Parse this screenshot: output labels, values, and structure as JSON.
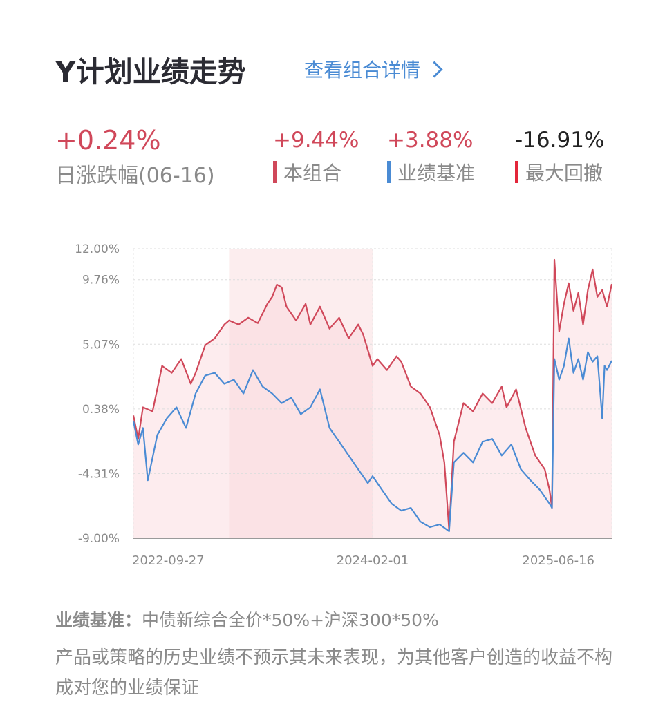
{
  "header": {
    "title": "Y计划业绩走势",
    "detail_link": "查看组合详情"
  },
  "stats": {
    "daily": {
      "value": "+0.24%",
      "label": "日涨跌幅(06-16)"
    },
    "portfolio": {
      "value": "+9.44%",
      "label": "本组合",
      "color": "#d0485a"
    },
    "benchmark": {
      "value": "+3.88%",
      "label": "业绩基准",
      "color": "#4a8bd4"
    },
    "drawdown": {
      "value": "-16.91%",
      "label": "最大回撤",
      "color": "#e3263a"
    }
  },
  "chart_data": {
    "type": "line",
    "title": "",
    "ylim": [
      -9.0,
      12.0
    ],
    "yticks": [
      "12.00%",
      "9.76%",
      "5.07%",
      "0.38%",
      "-4.31%",
      "-9.00%"
    ],
    "ytick_values": [
      12.0,
      9.76,
      5.07,
      0.38,
      -4.31,
      -9.0
    ],
    "xticks": [
      {
        "label": "2022-09-27",
        "t": 0.0
      },
      {
        "label": "2024-02-01",
        "t": 0.5
      },
      {
        "label": "2025-06-16",
        "t": 1.0
      }
    ],
    "drawdown_period": {
      "start_t": 0.2,
      "end_t": 0.5
    },
    "series": [
      {
        "name": "本组合",
        "color": "#d0485a",
        "points": [
          [
            0.0,
            -0.1
          ],
          [
            0.01,
            -1.8
          ],
          [
            0.02,
            0.5
          ],
          [
            0.04,
            0.2
          ],
          [
            0.06,
            3.5
          ],
          [
            0.08,
            3.0
          ],
          [
            0.1,
            4.0
          ],
          [
            0.12,
            2.2
          ],
          [
            0.13,
            3.0
          ],
          [
            0.15,
            5.0
          ],
          [
            0.17,
            5.5
          ],
          [
            0.19,
            6.5
          ],
          [
            0.2,
            6.8
          ],
          [
            0.22,
            6.5
          ],
          [
            0.24,
            7.0
          ],
          [
            0.26,
            6.6
          ],
          [
            0.28,
            8.0
          ],
          [
            0.29,
            8.5
          ],
          [
            0.3,
            9.4
          ],
          [
            0.31,
            9.2
          ],
          [
            0.32,
            7.8
          ],
          [
            0.34,
            6.8
          ],
          [
            0.36,
            8.0
          ],
          [
            0.37,
            6.5
          ],
          [
            0.39,
            7.8
          ],
          [
            0.41,
            6.2
          ],
          [
            0.43,
            7.0
          ],
          [
            0.45,
            5.5
          ],
          [
            0.47,
            6.5
          ],
          [
            0.48,
            5.8
          ],
          [
            0.5,
            3.5
          ],
          [
            0.51,
            4.0
          ],
          [
            0.53,
            3.2
          ],
          [
            0.55,
            4.2
          ],
          [
            0.56,
            3.8
          ],
          [
            0.58,
            2.0
          ],
          [
            0.6,
            1.5
          ],
          [
            0.62,
            0.5
          ],
          [
            0.64,
            -1.5
          ],
          [
            0.65,
            -3.5
          ],
          [
            0.66,
            -8.4
          ],
          [
            0.67,
            -2.0
          ],
          [
            0.69,
            0.8
          ],
          [
            0.71,
            0.2
          ],
          [
            0.73,
            1.5
          ],
          [
            0.75,
            0.8
          ],
          [
            0.77,
            2.0
          ],
          [
            0.78,
            0.5
          ],
          [
            0.8,
            1.8
          ],
          [
            0.82,
            -1.0
          ],
          [
            0.84,
            -3.0
          ],
          [
            0.86,
            -4.0
          ],
          [
            0.87,
            -5.5
          ],
          [
            0.875,
            -6.8
          ],
          [
            0.88,
            11.2
          ],
          [
            0.89,
            6.0
          ],
          [
            0.9,
            8.0
          ],
          [
            0.91,
            9.5
          ],
          [
            0.92,
            7.5
          ],
          [
            0.93,
            8.8
          ],
          [
            0.94,
            6.5
          ],
          [
            0.95,
            9.0
          ],
          [
            0.96,
            10.5
          ],
          [
            0.97,
            8.5
          ],
          [
            0.98,
            9.0
          ],
          [
            0.99,
            7.8
          ],
          [
            1.0,
            9.44
          ]
        ]
      },
      {
        "name": "业绩基准",
        "color": "#4a8bd4",
        "points": [
          [
            0.0,
            -0.5
          ],
          [
            0.01,
            -2.2
          ],
          [
            0.02,
            -1.0
          ],
          [
            0.03,
            -4.8
          ],
          [
            0.05,
            -1.5
          ],
          [
            0.07,
            -0.3
          ],
          [
            0.09,
            0.5
          ],
          [
            0.11,
            -1.0
          ],
          [
            0.13,
            1.5
          ],
          [
            0.15,
            2.8
          ],
          [
            0.17,
            3.0
          ],
          [
            0.19,
            2.2
          ],
          [
            0.21,
            2.5
          ],
          [
            0.23,
            1.5
          ],
          [
            0.25,
            3.2
          ],
          [
            0.27,
            2.0
          ],
          [
            0.29,
            1.5
          ],
          [
            0.31,
            0.8
          ],
          [
            0.33,
            1.2
          ],
          [
            0.35,
            0.0
          ],
          [
            0.37,
            0.5
          ],
          [
            0.39,
            1.8
          ],
          [
            0.41,
            -1.0
          ],
          [
            0.43,
            -2.0
          ],
          [
            0.45,
            -3.0
          ],
          [
            0.47,
            -4.0
          ],
          [
            0.49,
            -5.0
          ],
          [
            0.5,
            -4.5
          ],
          [
            0.52,
            -5.5
          ],
          [
            0.54,
            -6.5
          ],
          [
            0.56,
            -7.0
          ],
          [
            0.58,
            -6.8
          ],
          [
            0.6,
            -7.8
          ],
          [
            0.62,
            -8.2
          ],
          [
            0.64,
            -8.0
          ],
          [
            0.66,
            -8.5
          ],
          [
            0.67,
            -3.5
          ],
          [
            0.69,
            -2.8
          ],
          [
            0.71,
            -3.5
          ],
          [
            0.73,
            -2.0
          ],
          [
            0.75,
            -1.8
          ],
          [
            0.77,
            -3.0
          ],
          [
            0.79,
            -2.2
          ],
          [
            0.81,
            -4.0
          ],
          [
            0.83,
            -4.8
          ],
          [
            0.85,
            -5.5
          ],
          [
            0.87,
            -6.5
          ],
          [
            0.875,
            -6.8
          ],
          [
            0.88,
            4.0
          ],
          [
            0.89,
            2.5
          ],
          [
            0.9,
            3.5
          ],
          [
            0.91,
            5.5
          ],
          [
            0.92,
            3.0
          ],
          [
            0.93,
            4.0
          ],
          [
            0.94,
            2.5
          ],
          [
            0.95,
            4.5
          ],
          [
            0.96,
            3.8
          ],
          [
            0.97,
            4.2
          ],
          [
            0.98,
            -0.3
          ],
          [
            0.985,
            3.5
          ],
          [
            0.99,
            3.2
          ],
          [
            1.0,
            3.88
          ]
        ]
      }
    ]
  },
  "footer": {
    "bench_label": "业绩基准：",
    "bench_value": "中债新综合全价*50%+沪深300*50%",
    "disclaimer": "产品或策略的历史业绩不预示其未来表现，为其他客户创造的收益不构成对您的业绩保证"
  }
}
